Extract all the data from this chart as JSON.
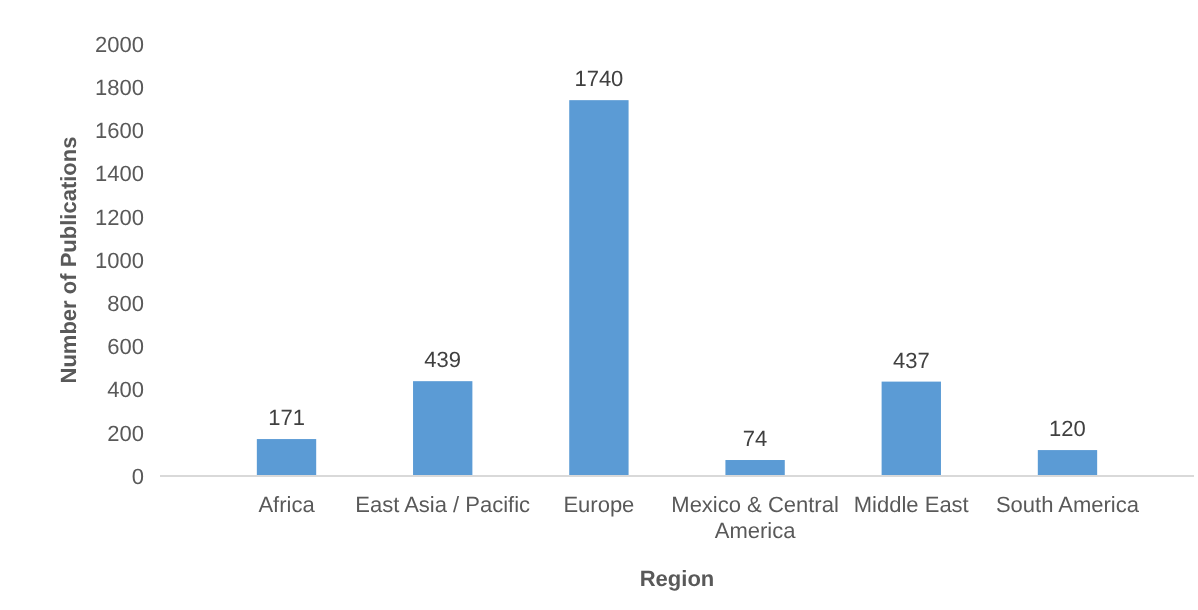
{
  "chart_data": {
    "type": "bar",
    "xlabel": "Region",
    "ylabel": "Number of Publications",
    "categories": [
      "Africa",
      "East Asia / Pacific",
      "Europe",
      "Mexico & Central America",
      "Middle East",
      "South America"
    ],
    "values": [
      171,
      439,
      1740,
      74,
      437,
      120
    ],
    "color": "#5b9bd5",
    "ylim": [
      0,
      2000
    ],
    "yticks": [
      0,
      200,
      400,
      600,
      800,
      1000,
      1200,
      1400,
      1600,
      1800,
      2000
    ],
    "grid": false,
    "data_labels": true
  }
}
